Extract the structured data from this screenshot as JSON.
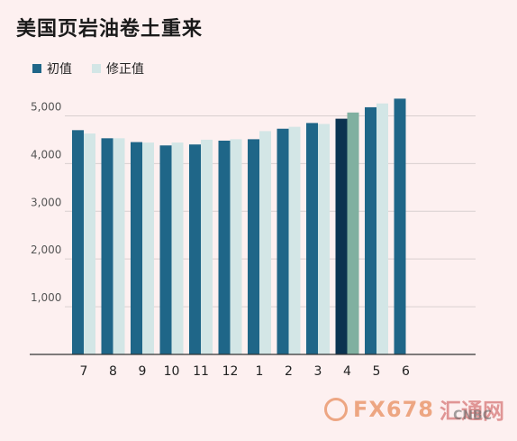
{
  "title": "美国页岩油卷土重来",
  "watermark": {
    "fx": "FX678",
    "cn": "汇通网",
    "cnbc": "CNBC"
  },
  "colors": {
    "initial": "#1f6688",
    "revised": "#d3e6e6",
    "highlight": "#0c3350",
    "highlight_revised": "#80b0a0",
    "grid": "#d8cfcf",
    "axis": "#333333"
  },
  "chart_data": {
    "type": "bar",
    "title": "美国页岩油卷土重来",
    "xlabel": "",
    "ylabel": "",
    "ylim": [
      0,
      5500
    ],
    "yticks": [
      1000,
      2000,
      3000,
      4000,
      5000
    ],
    "ytick_labels": [
      "1,000",
      "2,000",
      "3,000",
      "4,000",
      "5,000"
    ],
    "categories": [
      "7",
      "8",
      "9",
      "10",
      "11",
      "12",
      "1",
      "2",
      "3",
      "4",
      "5",
      "6"
    ],
    "series": [
      {
        "name": "初值",
        "values": [
          4700,
          4530,
          4450,
          4380,
          4400,
          4480,
          4510,
          4730,
          4850,
          4940,
          5180,
          5360
        ]
      },
      {
        "name": "修正值",
        "values": [
          4630,
          4530,
          4440,
          4440,
          4500,
          4510,
          4680,
          4770,
          4830,
          5070,
          5260,
          null
        ]
      }
    ],
    "highlight_index": 9,
    "legend": "top-left"
  }
}
